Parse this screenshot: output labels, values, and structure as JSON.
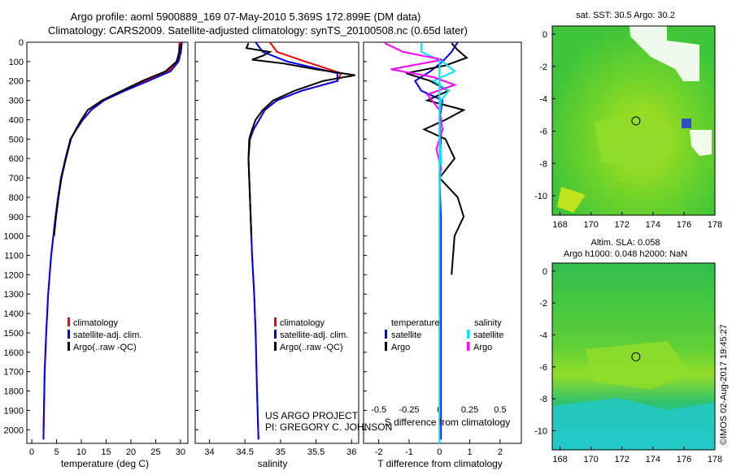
{
  "header": {
    "title_line1": "Argo profile: aoml 5900889_169 07-May-2010 5.369S 172.899E (DM data)",
    "title_line2": "Climatology: CARS2009. Satellite-adjusted climatology: synTS_20100508.nc (0.65d later)"
  },
  "colors": {
    "climatology": "#ff0000",
    "satellite": "#0000ff",
    "argo": "#000000",
    "salinity_satellite": "#00e5ff",
    "salinity_argo": "#ff00ff"
  },
  "legends": {
    "climatology": "climatology",
    "satellite_clim": "satellite-adj. clim.",
    "argo_raw": "Argo(..raw -QC)",
    "temperature_head": "temperature",
    "salinity_head": "salinity",
    "satellite": "satellite",
    "argo": "Argo"
  },
  "credits": {
    "project": "US ARGO PROJECT",
    "pi": "PI: GREGORY C. JOHNSON",
    "imos": "©IMOS 02-Aug-2017 19:45:27"
  },
  "maps": {
    "sst_title": "sat. SST: 30.5 Argo: 30.2",
    "sla_title_line1": "Altim. SLA: 0.058",
    "sla_title_line2": "Argo h1000: 0.048 h2000: NaN",
    "x_ticks": [
      "168",
      "170",
      "172",
      "174",
      "176",
      "178"
    ],
    "y_ticks": [
      "0",
      "-2",
      "-4",
      "-6",
      "-8",
      "-10"
    ],
    "argo_lon": 172.9,
    "argo_lat": -5.37
  },
  "chart_data": [
    {
      "type": "line",
      "title": "",
      "xlabel": "temperature (deg C)",
      "ylabel": "",
      "xlim": [
        -1,
        31.5
      ],
      "ylim": [
        2070,
        0
      ],
      "xticks": [
        0,
        5,
        10,
        15,
        20,
        25,
        30
      ],
      "yticks": [
        0,
        100,
        200,
        300,
        400,
        500,
        600,
        700,
        800,
        900,
        1000,
        1100,
        1200,
        1300,
        1400,
        1500,
        1600,
        1700,
        1800,
        1900,
        2000
      ],
      "series": [
        {
          "name": "climatology",
          "color": "#ff0000",
          "x": [
            29.8,
            29.7,
            29.3,
            27.5,
            23.0,
            18.5,
            14.5,
            12.0,
            10.3,
            9.0,
            7.8,
            6.8,
            5.9,
            5.3,
            4.8,
            3.9,
            3.3,
            2.9,
            2.6,
            2.45,
            2.35
          ],
          "y": [
            0,
            50,
            100,
            150,
            200,
            250,
            300,
            350,
            400,
            450,
            500,
            600,
            700,
            800,
            900,
            1100,
            1300,
            1500,
            1700,
            1900,
            2050
          ]
        },
        {
          "name": "satellite-adj. clim.",
          "color": "#0000ff",
          "x": [
            30.3,
            30.1,
            29.6,
            28.0,
            23.5,
            18.8,
            14.6,
            12.0,
            10.3,
            9.0,
            7.8,
            6.8,
            5.9,
            5.3,
            4.8,
            3.9,
            3.3,
            2.9,
            2.6,
            2.45,
            2.35
          ],
          "y": [
            0,
            50,
            100,
            150,
            200,
            250,
            300,
            350,
            400,
            450,
            500,
            600,
            700,
            800,
            900,
            1100,
            1300,
            1500,
            1700,
            1900,
            2050
          ]
        },
        {
          "name": "Argo(..raw -QC)",
          "color": "#000000",
          "x": [
            30.0,
            29.8,
            29.2,
            27.0,
            22.3,
            18.2,
            14.2,
            11.3,
            10.0,
            8.9,
            7.9,
            6.9,
            6.0,
            5.4,
            4.9,
            4.5
          ],
          "y": [
            5,
            50,
            100,
            150,
            200,
            250,
            300,
            350,
            400,
            450,
            500,
            600,
            700,
            800,
            900,
            1000
          ]
        }
      ]
    },
    {
      "type": "line",
      "title": "",
      "xlabel": "salinity",
      "ylabel": "",
      "xlim": [
        33.8,
        36.1
      ],
      "ylim": [
        2070,
        0
      ],
      "xticks": [
        34,
        34.5,
        35,
        35.5,
        36
      ],
      "xticklabels": [
        "34",
        "34.5",
        "35",
        "35.5",
        "36"
      ],
      "series": [
        {
          "name": "climatology",
          "color": "#ff0000",
          "x": [
            34.85,
            34.95,
            35.35,
            35.85,
            35.8,
            35.3,
            34.95,
            34.78,
            34.7,
            34.62,
            34.57,
            34.55,
            34.56,
            34.58,
            34.6,
            34.63,
            34.65,
            34.67,
            34.69
          ],
          "y": [
            0,
            50,
            100,
            160,
            200,
            250,
            300,
            350,
            400,
            450,
            500,
            600,
            700,
            900,
            1100,
            1300,
            1500,
            1800,
            2050
          ]
        },
        {
          "name": "satellite-adj. clim.",
          "color": "#0000ff",
          "x": [
            34.65,
            34.75,
            35.1,
            35.8,
            35.8,
            35.3,
            34.95,
            34.78,
            34.7,
            34.62,
            34.57,
            34.55,
            34.56,
            34.58,
            34.6,
            34.63,
            34.65,
            34.67,
            34.69
          ],
          "y": [
            0,
            50,
            100,
            160,
            200,
            250,
            300,
            350,
            400,
            450,
            500,
            600,
            700,
            900,
            1100,
            1300,
            1500,
            1800,
            2050
          ]
        },
        {
          "name": "Argo(..raw -QC)",
          "color": "#000000",
          "x": [
            34.55,
            34.52,
            34.85,
            34.75,
            34.6,
            35.05,
            35.5,
            36.05,
            35.6,
            35.2,
            34.9,
            34.75,
            34.65,
            34.6,
            34.56,
            34.55,
            34.57,
            34.59
          ],
          "y": [
            5,
            30,
            50,
            70,
            90,
            110,
            140,
            170,
            200,
            250,
            300,
            350,
            400,
            450,
            500,
            600,
            800,
            1000
          ]
        }
      ]
    },
    {
      "type": "line",
      "title": "",
      "xlabel": "T difference from climatology",
      "xlabel_top": "S difference from climatology",
      "ylabel": "",
      "xlim": [
        -2.5,
        2.7
      ],
      "ylim": [
        2070,
        0
      ],
      "xticks": [
        -2,
        -1,
        0,
        1,
        2
      ],
      "xticks_top": [
        -0.5,
        -0.25,
        0,
        0.25,
        0.5
      ],
      "series": [
        {
          "name": "temperature satellite",
          "color": "#0000ff",
          "x": [
            0.6,
            0.4,
            0.1,
            -0.3,
            -0.8,
            -0.6,
            0.1,
            0.0,
            0.05,
            0.0,
            0.05,
            0.05,
            0.05,
            0.05,
            0.05,
            0.05
          ],
          "y": [
            0,
            50,
            100,
            150,
            200,
            250,
            300,
            400,
            500,
            700,
            900,
            1100,
            1300,
            1500,
            1800,
            2050
          ]
        },
        {
          "name": "temperature Argo",
          "color": "#000000",
          "x": [
            0.4,
            0.6,
            0.9,
            0.2,
            -1.1,
            -0.3,
            0.3,
            -0.4,
            0.8,
            0.2,
            -0.5,
            0.2,
            0.5,
            0.0,
            0.6,
            0.8,
            0.5,
            0.4
          ],
          "y": [
            5,
            40,
            80,
            120,
            160,
            200,
            250,
            300,
            350,
            400,
            450,
            500,
            600,
            700,
            800,
            900,
            1000,
            1200
          ]
        },
        {
          "name": "salinity satellite",
          "color": "#00e5ff",
          "x": [
            -0.6,
            -0.6,
            0.1,
            0.5,
            -0.2,
            0.3,
            0.05,
            0.0,
            0.05,
            0.0,
            0.0,
            0.0,
            0.0,
            0.0,
            0.0
          ],
          "y": [
            0,
            50,
            100,
            150,
            200,
            250,
            300,
            400,
            600,
            800,
            1000,
            1300,
            1600,
            1900,
            2050
          ]
        },
        {
          "name": "salinity Argo",
          "color": "#ff00ff",
          "x": [
            -1.8,
            -1.2,
            0.1,
            -1.6,
            -0.2,
            0.5,
            -0.4,
            0.0,
            0.1,
            -0.1,
            0.05,
            0.0
          ],
          "y": [
            5,
            50,
            90,
            140,
            180,
            220,
            270,
            350,
            450,
            550,
            650,
            700
          ]
        }
      ]
    }
  ]
}
